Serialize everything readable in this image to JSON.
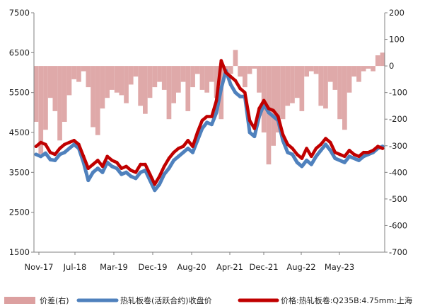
{
  "chart_data": {
    "type": "line",
    "x_ticks": [
      "Nov-17",
      "Jul-18",
      "Mar-19",
      "Dec-19",
      "Aug-20",
      "Apr-21",
      "Dec-21",
      "Aug-22",
      "May-23"
    ],
    "left_axis": {
      "ylim": [
        1500,
        7500
      ],
      "ticks": [
        "7500",
        "6500",
        "5500",
        "4500",
        "3500",
        "2500",
        "1500"
      ]
    },
    "right_axis": {
      "ylim": [
        -700,
        200
      ],
      "ticks": [
        "200",
        "100",
        "0",
        "-100",
        "-200",
        "-300",
        "-400",
        "-500",
        "-600",
        "-700"
      ]
    },
    "x_start": "2017-11",
    "x_end": "2023-12",
    "series": [
      {
        "name": "价差(右)",
        "kind": "area",
        "axis": "right",
        "color": "#dca0a0",
        "values": [
          -210,
          -330,
          -240,
          -120,
          -170,
          -280,
          -210,
          -110,
          -50,
          -60,
          -20,
          -80,
          -230,
          -260,
          -160,
          -120,
          -90,
          -100,
          -110,
          -140,
          -70,
          -40,
          -150,
          -180,
          -120,
          -80,
          -60,
          -90,
          -200,
          -140,
          -100,
          -60,
          -170,
          -80,
          -30,
          -90,
          -100,
          -60,
          -120,
          -200,
          -40,
          -30,
          60,
          -40,
          -80,
          -30,
          -10,
          -100,
          -250,
          -370,
          -300,
          -250,
          -200,
          -150,
          -140,
          -120,
          -170,
          -40,
          -20,
          -30,
          -150,
          -160,
          -60,
          -90,
          -200,
          -240,
          -100,
          -40,
          -60,
          -20,
          -10,
          -20,
          40,
          50
        ]
      },
      {
        "name": "热轧板卷(活跃合约)收盘价",
        "kind": "line",
        "axis": "left",
        "color": "#4f81bd",
        "values": [
          3950,
          3900,
          3980,
          3820,
          3800,
          3950,
          4000,
          4100,
          4200,
          4100,
          3750,
          3300,
          3500,
          3600,
          3500,
          3750,
          3650,
          3600,
          3450,
          3500,
          3400,
          3350,
          3500,
          3550,
          3300,
          3050,
          3200,
          3450,
          3600,
          3800,
          3900,
          4000,
          4100,
          4000,
          4300,
          4600,
          4750,
          4700,
          5000,
          5600,
          6050,
          5700,
          5500,
          5400,
          5400,
          4500,
          4400,
          4900,
          5200,
          5000,
          4900,
          4800,
          4300,
          4000,
          3950,
          3750,
          3650,
          3800,
          3700,
          3900,
          4050,
          4200,
          4050,
          3850,
          3800,
          3750,
          3900,
          3850,
          3800,
          3900,
          3950,
          4000,
          4100,
          4150
        ]
      },
      {
        "name": "价格:热轧板卷:Q235B:4.75mm:上海",
        "kind": "line",
        "axis": "left",
        "color": "#c00000",
        "values": [
          4150,
          4250,
          4200,
          4000,
          3950,
          4100,
          4200,
          4250,
          4300,
          4200,
          3900,
          3600,
          3700,
          3800,
          3650,
          3900,
          3800,
          3750,
          3600,
          3650,
          3550,
          3500,
          3700,
          3700,
          3450,
          3200,
          3400,
          3650,
          3850,
          4000,
          4100,
          4150,
          4300,
          4150,
          4500,
          4800,
          4900,
          4900,
          5300,
          6300,
          6000,
          5900,
          5800,
          5600,
          5500,
          4800,
          4600,
          5100,
          5300,
          5100,
          5050,
          4900,
          4450,
          4200,
          4100,
          3950,
          3850,
          4100,
          3900,
          4100,
          4200,
          4350,
          4250,
          4000,
          3950,
          3900,
          4050,
          3950,
          3900,
          4000,
          4000,
          4050,
          4150,
          4100
        ]
      }
    ],
    "legend_position": "bottom",
    "grid": false
  }
}
